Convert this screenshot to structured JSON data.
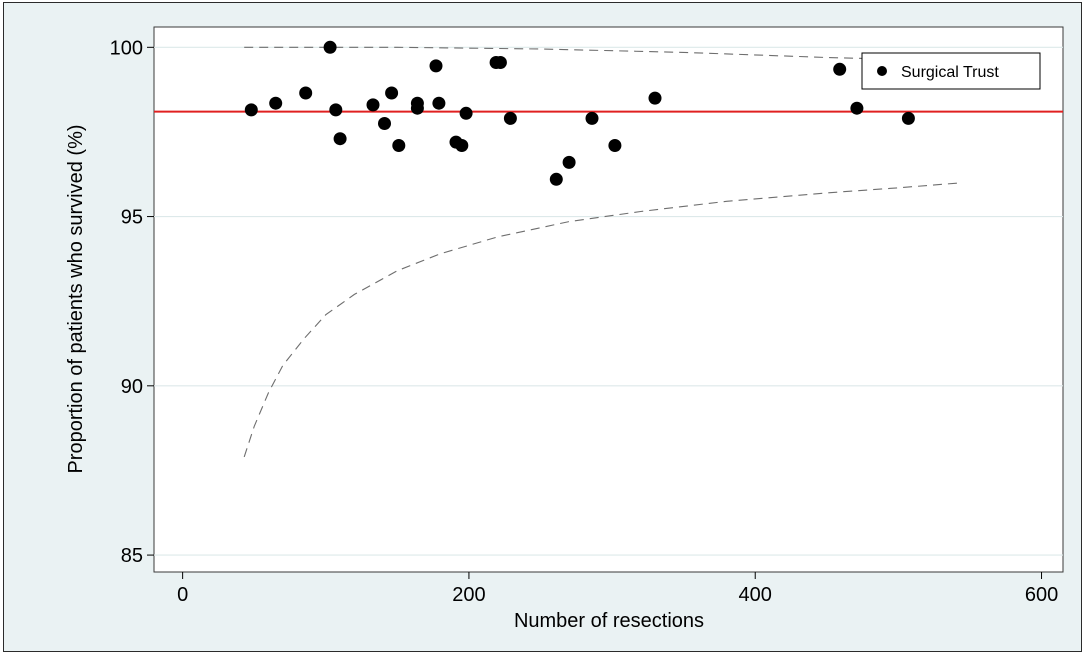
{
  "chart_data": {
    "type": "scatter",
    "xlabel": "Number of resections",
    "ylabel": "Proportion of patients who survived (%)",
    "xlim": [
      -20,
      615
    ],
    "ylim": [
      84.5,
      100.6
    ],
    "xticks": [
      0,
      200,
      400,
      600
    ],
    "yticks": [
      85,
      90,
      95,
      100
    ],
    "grid": "horizontal",
    "legend": {
      "placement": "top-right",
      "entries": [
        "Surgical Trust"
      ]
    },
    "reference_line": {
      "y": 98.1,
      "color": "#e02020"
    },
    "series": [
      {
        "name": "Surgical Trust",
        "marker": "filled-circle",
        "color": "#000000",
        "points": [
          [
            48,
            98.15
          ],
          [
            65,
            98.35
          ],
          [
            86,
            98.65
          ],
          [
            103,
            100.0
          ],
          [
            107,
            98.15
          ],
          [
            110,
            97.3
          ],
          [
            133,
            98.3
          ],
          [
            141,
            97.75
          ],
          [
            146,
            98.65
          ],
          [
            151,
            97.1
          ],
          [
            164,
            98.35
          ],
          [
            164,
            98.2
          ],
          [
            177,
            99.45
          ],
          [
            179,
            98.35
          ],
          [
            191,
            97.2
          ],
          [
            195,
            97.1
          ],
          [
            198,
            98.05
          ],
          [
            219,
            99.55
          ],
          [
            222,
            99.55
          ],
          [
            229,
            97.9
          ],
          [
            261,
            96.1
          ],
          [
            270,
            96.6
          ],
          [
            286,
            97.9
          ],
          [
            302,
            97.1
          ],
          [
            330,
            98.5
          ],
          [
            459,
            99.35
          ],
          [
            471,
            98.2
          ],
          [
            507,
            97.9
          ]
        ]
      }
    ],
    "control_limits": {
      "upper": {
        "style": "dashed",
        "color": "#6e6e6e",
        "points": [
          [
            43,
            100.0
          ],
          [
            150,
            100.0
          ],
          [
            250,
            99.95
          ],
          [
            350,
            99.85
          ],
          [
            450,
            99.7
          ],
          [
            545,
            99.6
          ]
        ]
      },
      "lower": {
        "style": "dashed",
        "color": "#6e6e6e",
        "points": [
          [
            43,
            87.9
          ],
          [
            50,
            88.8
          ],
          [
            60,
            89.8
          ],
          [
            70,
            90.6
          ],
          [
            85,
            91.4
          ],
          [
            100,
            92.1
          ],
          [
            120,
            92.7
          ],
          [
            150,
            93.4
          ],
          [
            180,
            93.9
          ],
          [
            220,
            94.4
          ],
          [
            270,
            94.85
          ],
          [
            320,
            95.15
          ],
          [
            380,
            95.45
          ],
          [
            450,
            95.7
          ],
          [
            500,
            95.85
          ],
          [
            545,
            96.0
          ]
        ]
      }
    }
  }
}
